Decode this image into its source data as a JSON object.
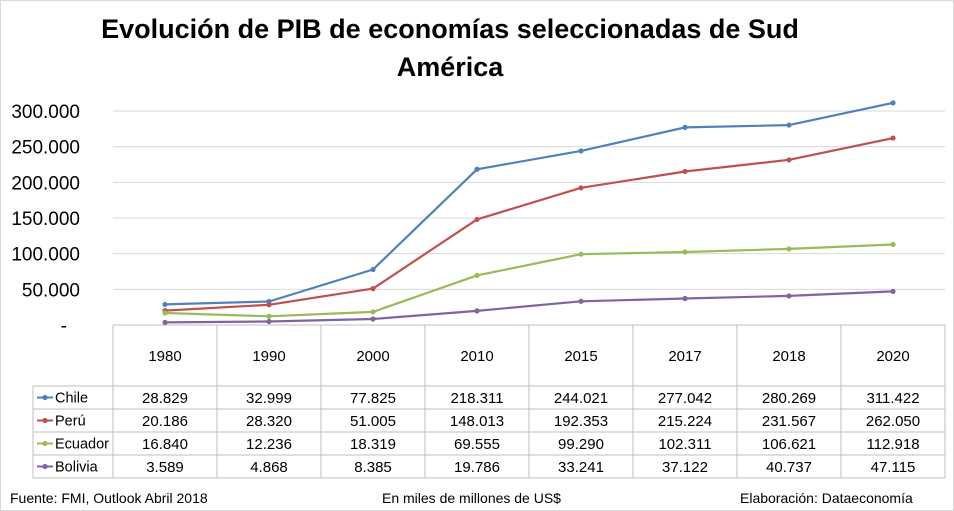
{
  "chart_data": {
    "type": "line",
    "title": "Evolución de PIB de economías seleccionadas de Sud América",
    "categories": [
      "1980",
      "1990",
      "2000",
      "2010",
      "2015",
      "2017",
      "2018",
      "2020"
    ],
    "y_ticks": [
      "300.000",
      "250.000",
      "200.000",
      "150.000",
      "100.000",
      "50.000",
      "-"
    ],
    "ylim": [
      0,
      300000
    ],
    "grid": true,
    "legend": "data-table",
    "series": [
      {
        "name": "Chile",
        "color": "#4F81BD",
        "values": [
          28829,
          32999,
          77825,
          218311,
          244021,
          277042,
          280269,
          311422
        ],
        "labels": [
          "28.829",
          "32.999",
          "77.825",
          "218.311",
          "244.021",
          "277.042",
          "280.269",
          "311.422"
        ]
      },
      {
        "name": "Perú",
        "color": "#C0504D",
        "values": [
          20186,
          28320,
          51005,
          148013,
          192353,
          215224,
          231567,
          262050
        ],
        "labels": [
          "20.186",
          "28.320",
          "51.005",
          "148.013",
          "192.353",
          "215.224",
          "231.567",
          "262.050"
        ]
      },
      {
        "name": "Ecuador",
        "color": "#9BBB59",
        "values": [
          16840,
          12236,
          18319,
          69555,
          99290,
          102311,
          106621,
          112918
        ],
        "labels": [
          "16.840",
          "12.236",
          "18.319",
          "69.555",
          "99.290",
          "102.311",
          "106.621",
          "112.918"
        ]
      },
      {
        "name": "Bolivia",
        "color": "#8064A2",
        "values": [
          3589,
          4868,
          8385,
          19786,
          33241,
          37122,
          40737,
          47115
        ],
        "labels": [
          "3.589",
          "4.868",
          "8.385",
          "19.786",
          "33.241",
          "37.122",
          "40.737",
          "47.115"
        ]
      }
    ]
  },
  "footer": {
    "source": "Fuente: FMI, Outlook Abril 2018",
    "units": "En miles de millones de US$",
    "credit": "Elaboración: Dataeconomía"
  }
}
